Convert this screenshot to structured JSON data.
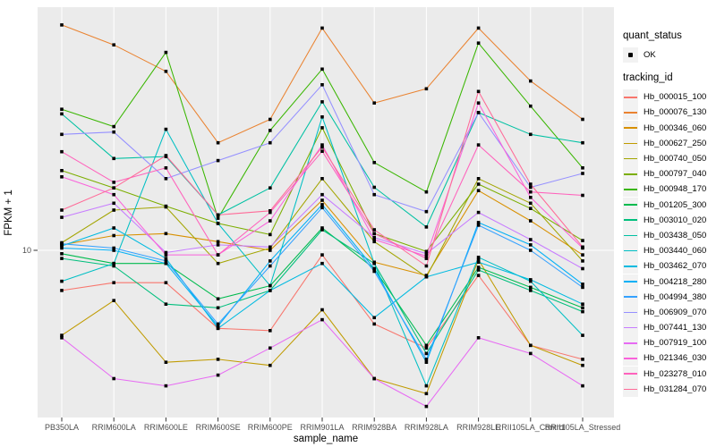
{
  "figure": {
    "background": "#FFFFFF",
    "panel_background": "#EBEBEB",
    "gridline_color": "#FFFFFF",
    "tick_color": "#333333",
    "tick_label_color": "#4D4D4D",
    "axis_title_color": "#000000",
    "point_color": "#000000",
    "legend_key_background": "#F2F2F2"
  },
  "chart_data": {
    "type": "line",
    "title": "",
    "xlabel": "sample_name",
    "ylabel": "FPKM + 1",
    "y_scale": "log10",
    "y_tick_values": [
      10
    ],
    "y_tick_labels": [
      "10"
    ],
    "ylim": [
      2.2,
      85
    ],
    "grid": "major",
    "legend_position": "right",
    "categories": [
      "PB350LA",
      "RRIM600LA",
      "RRIM600LE",
      "RRIM600SE",
      "RRIM600PE",
      "RRIM901LA",
      "RRIM928BA",
      "RRIM928LA",
      "RRIM928LE",
      "RRII105LA_Control",
      "RRII105LA_Stressed"
    ],
    "legend": {
      "quant_status_title": "quant_status",
      "ok_label": "OK",
      "tracking_title": "tracking_id"
    },
    "series": [
      {
        "name": "Hb_000015_100",
        "color": "#F8766D",
        "values": [
          7.0,
          7.5,
          7.5,
          5.0,
          4.9,
          9.6,
          5.2,
          4.2,
          8.0,
          4.3,
          3.8
        ]
      },
      {
        "name": "Hb_000076_130",
        "color": "#EA8331",
        "values": [
          74,
          62,
          49,
          26,
          32,
          72,
          37,
          42,
          72,
          45,
          32
        ]
      },
      {
        "name": "Hb_000346_060",
        "color": "#D89000",
        "values": [
          10.5,
          11.4,
          11.6,
          10.8,
          10.0,
          15.6,
          9.0,
          8.0,
          17.0,
          13.0,
          9.6
        ]
      },
      {
        "name": "Hb_000627_250",
        "color": "#C09B00",
        "values": [
          4.7,
          6.4,
          3.7,
          3.8,
          3.6,
          5.9,
          3.2,
          2.8,
          9.2,
          4.3,
          3.6
        ]
      },
      {
        "name": "Hb_000740_050",
        "color": "#A3A500",
        "values": [
          10.7,
          14.3,
          14.7,
          8.9,
          10.2,
          18.9,
          10.8,
          7.9,
          18.9,
          15.2,
          9.1
        ]
      },
      {
        "name": "Hb_000797_040",
        "color": "#7CAE00",
        "values": [
          20.3,
          17.4,
          14.8,
          12.7,
          11.5,
          29.7,
          11.6,
          9.9,
          18.0,
          14.5,
          10.9
        ]
      },
      {
        "name": "Hb_000948_170",
        "color": "#39B600",
        "values": [
          35,
          30,
          58,
          13.3,
          29,
          50,
          21.8,
          16.8,
          63,
          36,
          20.8
        ]
      },
      {
        "name": "Hb_001205_300",
        "color": "#00BB4E",
        "values": [
          9.7,
          8.9,
          8.9,
          6.5,
          7.3,
          12.2,
          8.5,
          4.3,
          8.6,
          7.2,
          6.0
        ]
      },
      {
        "name": "Hb_003010_020",
        "color": "#00BF7D",
        "values": [
          9.3,
          8.7,
          6.2,
          6.0,
          7.0,
          12.0,
          8.9,
          4.0,
          8.4,
          7.0,
          5.8
        ]
      },
      {
        "name": "Hb_003438_050",
        "color": "#00C1A3",
        "values": [
          33.6,
          22.6,
          23.0,
          13.7,
          17.4,
          37.4,
          17.5,
          12.3,
          34.0,
          28.0,
          26.0
        ]
      },
      {
        "name": "Hb_003440_060",
        "color": "#00BFC4",
        "values": [
          7.6,
          8.9,
          29.3,
          12.7,
          7.3,
          32.7,
          8.9,
          3.0,
          9.4,
          7.6,
          4.7
        ]
      },
      {
        "name": "Hb_003462_070",
        "color": "#00BAE0",
        "values": [
          10.4,
          12.2,
          9.3,
          5.0,
          7.0,
          8.9,
          5.5,
          7.9,
          9.0,
          7.7,
          6.2
        ]
      },
      {
        "name": "Hb_004218_280",
        "color": "#00B0F6",
        "values": [
          10.2,
          10.0,
          8.9,
          5.1,
          9.1,
          15.0,
          8.5,
          3.7,
          12.8,
          10.5,
          7.4
        ]
      },
      {
        "name": "Hb_004994_380",
        "color": "#35A2FF",
        "values": [
          10.6,
          10.2,
          9.1,
          5.2,
          8.7,
          14.6,
          8.3,
          3.8,
          12.5,
          10.0,
          7.2
        ]
      },
      {
        "name": "Hb_006909_070",
        "color": "#9590FF",
        "values": [
          28,
          28.6,
          18.9,
          22.2,
          26,
          43.5,
          16.4,
          14.1,
          34,
          17.5,
          19.8
        ]
      },
      {
        "name": "Hb_007441_130",
        "color": "#C77CFF",
        "values": [
          13.4,
          15.2,
          9.8,
          10.5,
          10.3,
          16.4,
          11.2,
          9.7,
          14.0,
          11.0,
          8.5
        ]
      },
      {
        "name": "Hb_007919_100",
        "color": "#E76BF3",
        "values": [
          4.6,
          3.2,
          3.0,
          3.3,
          4.2,
          5.4,
          3.2,
          2.5,
          4.6,
          4.0,
          3.0
        ]
      },
      {
        "name": "Hb_021346_030",
        "color": "#FA62DB",
        "values": [
          19.2,
          16.4,
          9.6,
          9.6,
          13.0,
          25.5,
          11.0,
          9.5,
          37.0,
          16.0,
          10.2
        ]
      },
      {
        "name": "Hb_023278_010",
        "color": "#FF62BC",
        "values": [
          24,
          18.3,
          20.8,
          9.6,
          14.0,
          24.1,
          11.6,
          9.3,
          25.5,
          16.8,
          16.3
        ]
      },
      {
        "name": "Hb_031284_070",
        "color": "#FF6A98",
        "values": [
          14.3,
          17.4,
          23.2,
          13.7,
          14.2,
          25.0,
          12.0,
          8.7,
          41.0,
          18.0,
          10.3
        ]
      }
    ]
  }
}
